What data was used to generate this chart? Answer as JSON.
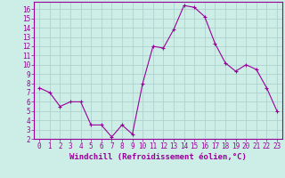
{
  "x": [
    0,
    1,
    2,
    3,
    4,
    5,
    6,
    7,
    8,
    9,
    10,
    11,
    12,
    13,
    14,
    15,
    16,
    17,
    18,
    19,
    20,
    21,
    22,
    23
  ],
  "y": [
    7.5,
    7.0,
    5.5,
    6.0,
    6.0,
    3.5,
    3.5,
    2.2,
    3.5,
    2.5,
    8.0,
    12.0,
    11.8,
    13.8,
    16.4,
    16.2,
    15.2,
    12.3,
    10.2,
    9.3,
    10.0,
    9.5,
    7.5,
    5.0
  ],
  "line_color": "#990099",
  "marker": "+",
  "marker_color": "#990099",
  "bg_color": "#cceee6",
  "grid_color": "#aacccc",
  "xlabel": "Windchill (Refroidissement éolien,°C)",
  "ylabel": "",
  "xlim": [
    -0.5,
    23.5
  ],
  "ylim": [
    2,
    16.8
  ],
  "yticks": [
    2,
    3,
    4,
    5,
    6,
    7,
    8,
    9,
    10,
    11,
    12,
    13,
    14,
    15,
    16
  ],
  "xticks": [
    0,
    1,
    2,
    3,
    4,
    5,
    6,
    7,
    8,
    9,
    10,
    11,
    12,
    13,
    14,
    15,
    16,
    17,
    18,
    19,
    20,
    21,
    22,
    23
  ],
  "tick_color": "#990099",
  "label_fontsize": 6.5,
  "tick_fontsize": 5.5,
  "spine_color": "#990099"
}
